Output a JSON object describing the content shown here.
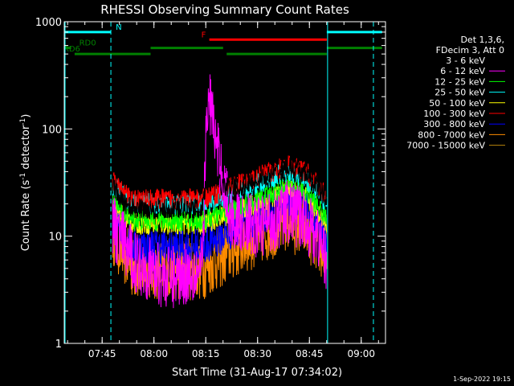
{
  "chart_data": {
    "type": "line",
    "title": "RHESSI Observing Summary Count Rates",
    "xlabel": "Start Time (31-Aug-17 07:34:02)",
    "ylabel_main": "Count Rate (s",
    "ylabel_sup1": "-1",
    "ylabel_mid": " detector",
    "ylabel_sup2": "-1",
    "ylabel_end": ")",
    "yscale": "log",
    "xlim_minutes": [
      0,
      93
    ],
    "ylim": [
      1,
      1000
    ],
    "x_ticks": [
      {
        "label": "07:45",
        "minute": 10.97
      },
      {
        "label": "08:00",
        "minute": 25.97
      },
      {
        "label": "08:15",
        "minute": 40.97
      },
      {
        "label": "08:30",
        "minute": 55.97
      },
      {
        "label": "08:45",
        "minute": 70.97
      },
      {
        "label": "09:00",
        "minute": 85.97
      }
    ],
    "y_ticks": [
      {
        "label": "1",
        "value": 1
      },
      {
        "label": "10",
        "value": 10
      },
      {
        "label": "100",
        "value": 100
      },
      {
        "label": "1000",
        "value": 1000
      }
    ],
    "legend_header": [
      "Det 1,3,6,",
      "FDecim 3, Att 0"
    ],
    "legend_position": "top-right",
    "series": [
      {
        "name": "3 - 6 keV",
        "color": "#000000",
        "values": [
          [
            14,
            31
          ],
          [
            16,
            22
          ],
          [
            20,
            18
          ],
          [
            40,
            18
          ],
          [
            42,
            55
          ],
          [
            45,
            30
          ],
          [
            50,
            28
          ],
          [
            60,
            37
          ],
          [
            65,
            44
          ],
          [
            70,
            38
          ],
          [
            74,
            27
          ],
          [
            76,
            22
          ]
        ]
      },
      {
        "name": "6 - 12 keV",
        "color": "#ff00ff",
        "values": [
          [
            14,
            12
          ],
          [
            16,
            10
          ],
          [
            20,
            6
          ],
          [
            30,
            4
          ],
          [
            40,
            5
          ],
          [
            41,
            80
          ],
          [
            42,
            195
          ],
          [
            43,
            130
          ],
          [
            44,
            68
          ],
          [
            46,
            35
          ],
          [
            48,
            15
          ],
          [
            56,
            12
          ],
          [
            65,
            17
          ],
          [
            70,
            14
          ],
          [
            74,
            9
          ],
          [
            76,
            6
          ]
        ]
      },
      {
        "name": "12 - 25 keV",
        "color": "#00ff00",
        "values": [
          [
            14,
            23
          ],
          [
            16,
            18
          ],
          [
            20,
            14
          ],
          [
            40,
            14
          ],
          [
            50,
            18
          ],
          [
            60,
            25
          ],
          [
            65,
            30
          ],
          [
            70,
            26
          ],
          [
            74,
            18
          ],
          [
            76,
            15
          ]
        ]
      },
      {
        "name": "25 - 50 keV",
        "color": "#00ffff",
        "values": [
          [
            14,
            30
          ],
          [
            16,
            26
          ],
          [
            20,
            20
          ],
          [
            40,
            20
          ],
          [
            50,
            26
          ],
          [
            60,
            35
          ],
          [
            65,
            40
          ],
          [
            70,
            34
          ],
          [
            74,
            24
          ],
          [
            76,
            20
          ]
        ]
      },
      {
        "name": "50 - 100 keV",
        "color": "#ffff00",
        "values": [
          [
            14,
            20
          ],
          [
            16,
            17
          ],
          [
            20,
            13
          ],
          [
            40,
            13
          ],
          [
            50,
            17
          ],
          [
            60,
            23
          ],
          [
            65,
            27
          ],
          [
            70,
            23
          ],
          [
            74,
            16
          ],
          [
            76,
            13
          ]
        ]
      },
      {
        "name": "100 - 300 keV",
        "color": "#ff0000",
        "values": [
          [
            14,
            34
          ],
          [
            16,
            27
          ],
          [
            20,
            22
          ],
          [
            40,
            22
          ],
          [
            50,
            30
          ],
          [
            60,
            40
          ],
          [
            65,
            45
          ],
          [
            70,
            40
          ],
          [
            74,
            28
          ],
          [
            76,
            24
          ]
        ]
      },
      {
        "name": "300 - 800 keV",
        "color": "#0000ff",
        "values": [
          [
            14,
            16
          ],
          [
            16,
            12
          ],
          [
            20,
            8
          ],
          [
            40,
            8
          ],
          [
            50,
            12
          ],
          [
            60,
            18
          ],
          [
            65,
            22
          ],
          [
            70,
            19
          ],
          [
            74,
            12
          ],
          [
            76,
            9
          ]
        ]
      },
      {
        "name": "800 - 7000 keV",
        "color": "#ff8c00",
        "values": [
          [
            14,
            11
          ],
          [
            16,
            8
          ],
          [
            20,
            5
          ],
          [
            40,
            5
          ],
          [
            50,
            8
          ],
          [
            60,
            12
          ],
          [
            65,
            14
          ],
          [
            70,
            12
          ],
          [
            74,
            8
          ],
          [
            76,
            6
          ]
        ]
      },
      {
        "name": "7000 - 15000 keV",
        "color": "#b8860b",
        "values": []
      }
    ],
    "state_bars": [
      {
        "label": "N",
        "label_color": "#00ffff",
        "color": "#00ffff",
        "level": 800,
        "segments": [
          [
            0,
            13.5
          ],
          [
            76,
            92
          ]
        ]
      },
      {
        "label": "F",
        "label_color": "#ff0000",
        "color": "#ff0000",
        "level": 680,
        "segments": [
          [
            42,
            76
          ]
        ]
      },
      {
        "label": "RD0",
        "label_color": "#008000",
        "color": "#008000",
        "level": 570,
        "segments": [
          [
            0,
            2
          ],
          [
            25,
            46
          ],
          [
            76,
            92
          ]
        ]
      },
      {
        "label": "RD6",
        "label_color": "#008000",
        "color": "#008000",
        "level": 500,
        "segments": [
          [
            3,
            25
          ],
          [
            47,
            76
          ]
        ]
      }
    ],
    "vlines_solid": [
      0,
      76
    ],
    "vlines_dashed": [
      13.5,
      89.5
    ],
    "vline_color": "#00ffff",
    "footer_timestamp": "1-Sep-2022 19:15"
  }
}
